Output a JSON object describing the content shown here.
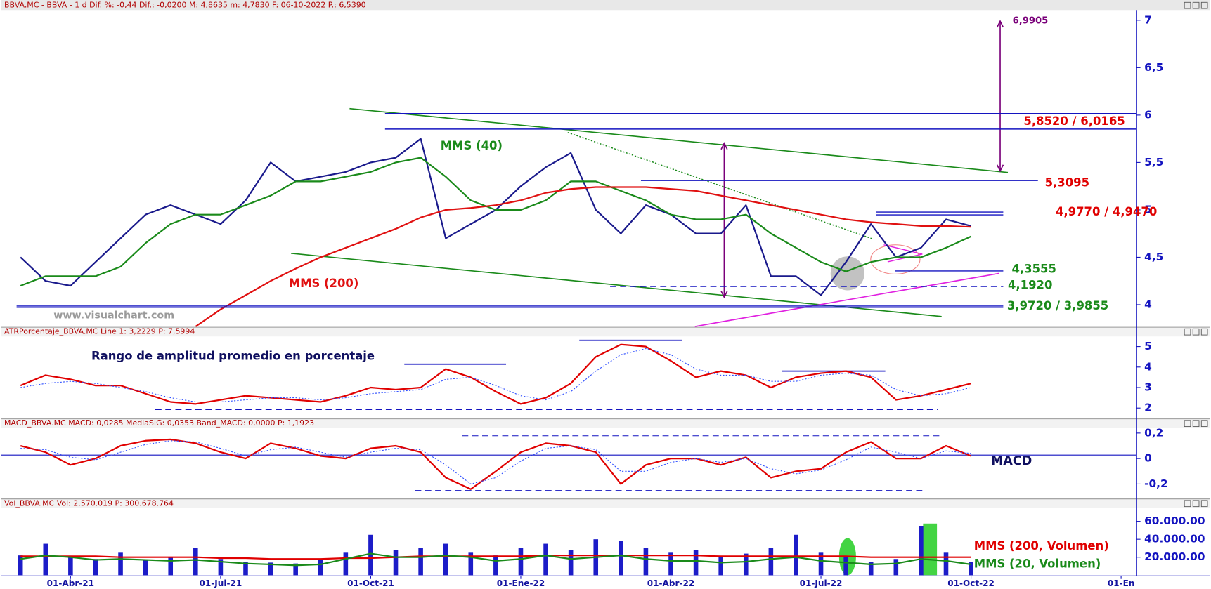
{
  "chart_data": [
    {
      "type": "line",
      "title": "BBVA.MC - BBVA -  1 d  Dif. %: -0,44  Dif.: -0,0200  M: 4,8635  m: 4,7830  F: 06-10-2022  P.: 6,5390",
      "categories": [
        null,
        null,
        "01-Abr-21",
        null,
        null,
        null,
        null,
        null,
        "01-Jul-21",
        null,
        null,
        null,
        null,
        null,
        "01-Oct-21",
        null,
        null,
        null,
        null,
        null,
        "01-Ene-22",
        null,
        null,
        null,
        null,
        null,
        "01-Abr-22",
        null,
        null,
        null,
        null,
        null,
        "01-Jul-22",
        null,
        null,
        null,
        null,
        null,
        "01-Oct-22",
        null,
        null,
        null,
        null,
        null,
        "01-En"
      ],
      "series": [
        {
          "color": "#1a1a8c",
          "values": [
            4.5,
            4.25,
            4.2,
            4.45,
            4.7,
            4.95,
            5.05,
            4.95,
            4.85,
            5.1,
            5.5,
            5.3,
            5.35,
            5.4,
            5.5,
            5.55,
            5.75,
            4.7,
            4.85,
            5.0,
            5.25,
            5.45,
            5.6,
            5.0,
            4.75,
            5.05,
            4.95,
            4.75,
            4.75,
            5.05,
            4.3,
            4.3,
            4.1,
            4.45,
            4.85,
            4.5,
            4.6,
            4.9,
            4.83,
            null,
            null,
            null,
            null,
            null,
            null
          ]
        },
        {
          "name": "MMS (40)",
          "color": "#1a8a1a",
          "values": [
            4.2,
            4.3,
            4.3,
            4.3,
            4.4,
            4.65,
            4.85,
            4.95,
            4.95,
            5.05,
            5.15,
            5.3,
            5.3,
            5.35,
            5.4,
            5.5,
            5.55,
            5.35,
            5.1,
            5.0,
            5.0,
            5.1,
            5.3,
            5.3,
            5.2,
            5.1,
            4.95,
            4.9,
            4.9,
            4.95,
            4.75,
            4.6,
            4.45,
            4.35,
            4.45,
            4.5,
            4.5,
            4.6,
            4.72,
            null,
            null,
            null,
            null,
            null,
            null
          ]
        },
        {
          "name": "MMS (200)",
          "color": "#e01010",
          "values": [
            null,
            null,
            null,
            null,
            null,
            null,
            null,
            3.77,
            3.95,
            4.1,
            4.25,
            4.38,
            4.5,
            4.6,
            4.7,
            4.8,
            4.92,
            5.0,
            5.02,
            5.05,
            5.1,
            5.18,
            5.22,
            5.24,
            5.24,
            5.24,
            5.22,
            5.2,
            5.15,
            5.1,
            5.05,
            5.0,
            4.95,
            4.9,
            4.87,
            4.85,
            4.83,
            4.83,
            4.82,
            null,
            null,
            null,
            null,
            null,
            null
          ]
        }
      ],
      "levels": [
        {
          "label": "6,9905",
          "values": [
            6.9905
          ],
          "color": "#7a007a"
        },
        {
          "label": "5,8520 / 6,0165",
          "values": [
            5.852,
            6.0165
          ],
          "color": "#e00000"
        },
        {
          "label": "5,3095",
          "values": [
            5.3095
          ],
          "color": "#e00000"
        },
        {
          "label": "4,9770 / 4,9470",
          "values": [
            4.977,
            4.947
          ],
          "color": "#e00000"
        },
        {
          "label": "4,3555",
          "values": [
            4.3555
          ],
          "color": "#1a8a1a"
        },
        {
          "label": "4,1920",
          "values": [
            4.192
          ],
          "color": "#1a8a1a"
        },
        {
          "label": "3,9720 / 3,9855",
          "values": [
            3.972,
            3.9855
          ],
          "color": "#1a8a1a"
        }
      ],
      "annotations": [
        "www.visualchart.com"
      ],
      "ylim": [
        3.77,
        7.1
      ],
      "yticks": [
        4,
        {
          "value": 4.5,
          "label": "4,5"
        },
        5,
        {
          "value": 5.5,
          "label": "5,5"
        },
        6,
        {
          "value": 6.5,
          "label": "6,5"
        },
        7
      ]
    },
    {
      "type": "line",
      "title": "ATRPorcentaje_BBVA.MC  Line 1: 3,2229  P: 7,5994",
      "subtitle": "Rango de amplitud promedio en porcentaje",
      "series": [
        {
          "color": "#e00000",
          "values": [
            3.1,
            3.6,
            3.4,
            3.1,
            3.1,
            2.7,
            2.3,
            2.2,
            2.4,
            2.6,
            2.5,
            2.4,
            2.3,
            2.6,
            3.0,
            2.9,
            3.0,
            3.9,
            3.5,
            2.8,
            2.2,
            2.5,
            3.2,
            4.5,
            5.1,
            5.0,
            4.3,
            3.5,
            3.8,
            3.6,
            3.0,
            3.5,
            3.7,
            3.8,
            3.5,
            2.4,
            2.6,
            2.9,
            3.2,
            null,
            null,
            null,
            null,
            null,
            null
          ]
        },
        {
          "color": "#3050ff",
          "style": "dotted",
          "values": [
            3.0,
            3.2,
            3.3,
            3.2,
            3.0,
            2.8,
            2.5,
            2.3,
            2.3,
            2.4,
            2.5,
            2.5,
            2.4,
            2.5,
            2.7,
            2.8,
            2.9,
            3.4,
            3.5,
            3.1,
            2.6,
            2.4,
            2.8,
            3.8,
            4.6,
            4.9,
            4.6,
            3.9,
            3.6,
            3.6,
            3.3,
            3.3,
            3.6,
            3.7,
            3.6,
            2.9,
            2.6,
            2.7,
            3.0,
            null,
            null,
            null,
            null,
            null,
            null
          ]
        }
      ],
      "ylim": [
        1.51,
        5.49
      ],
      "yticks": [
        2,
        3,
        4,
        5
      ]
    },
    {
      "type": "line",
      "title": "MACD_BBVA.MC  MACD: 0,0285  MediaSIG: 0,0353  Band_MACD: 0,0000  P: 1,1923",
      "annotations": [
        "MACD"
      ],
      "series": [
        {
          "color": "#e00000",
          "values": [
            0.1,
            0.05,
            -0.05,
            0.0,
            0.1,
            0.14,
            0.15,
            0.12,
            0.05,
            0.0,
            0.12,
            0.08,
            0.02,
            0.0,
            0.08,
            0.1,
            0.05,
            -0.15,
            -0.24,
            -0.1,
            0.05,
            0.12,
            0.1,
            0.05,
            -0.2,
            -0.05,
            0.0,
            0.0,
            -0.05,
            0.01,
            -0.15,
            -0.1,
            -0.08,
            0.05,
            0.13,
            0.0,
            0.0,
            0.1,
            0.02,
            null,
            null,
            null,
            null,
            null,
            null
          ]
        },
        {
          "color": "#3050ff",
          "style": "dotted",
          "values": [
            0.08,
            0.07,
            0.01,
            -0.01,
            0.05,
            0.11,
            0.14,
            0.13,
            0.08,
            0.02,
            0.07,
            0.09,
            0.05,
            0.01,
            0.05,
            0.08,
            0.07,
            -0.05,
            -0.2,
            -0.15,
            -0.02,
            0.08,
            0.1,
            0.07,
            -0.1,
            -0.1,
            -0.03,
            0.0,
            -0.03,
            0.0,
            -0.08,
            -0.12,
            -0.09,
            -0.01,
            0.09,
            0.05,
            0.0,
            0.06,
            0.04,
            null,
            null,
            null,
            null,
            null,
            null
          ]
        }
      ],
      "ylim": [
        -0.311,
        0.239
      ],
      "yticks": [
        {
          "value": 0.2,
          "label": "0,2"
        },
        0,
        {
          "value": -0.2,
          "label": "-0,2"
        }
      ]
    },
    {
      "type": "bar",
      "title": "Vol_BBVA.MC  Vol: 2.570.019  P: 300.678.764",
      "series": [
        {
          "color": "#1c1cc8",
          "values": [
            22000000.0,
            35000000.0,
            20000000.0,
            18000000.0,
            25000000.0,
            17000000.0,
            20000000.0,
            30000000.0,
            18000000.0,
            15000000.0,
            14000000.0,
            13000000.0,
            17000000.0,
            25000000.0,
            45000000.0,
            28000000.0,
            30000000.0,
            35000000.0,
            25000000.0,
            22000000.0,
            30000000.0,
            35000000.0,
            28000000.0,
            40000000.0,
            38000000.0,
            30000000.0,
            25000000.0,
            28000000.0,
            20000000.0,
            24000000.0,
            30000000.0,
            45000000.0,
            25000000.0,
            20000000.0,
            15000000.0,
            18000000.0,
            55000000.0,
            25000000.0,
            15000000.0,
            null,
            null,
            null,
            null,
            null,
            null
          ]
        },
        {
          "name": "MMS (200, Volumen)",
          "type": "line",
          "color": "#e00000",
          "values": [
            21000000.0,
            21000000.0,
            21000000.0,
            21000000.0,
            20000000.0,
            20000000.0,
            20000000.0,
            20000000.0,
            19000000.0,
            19000000.0,
            18000000.0,
            18000000.0,
            18000000.0,
            19000000.0,
            19000000.0,
            20000000.0,
            21000000.0,
            21000000.0,
            21000000.0,
            21000000.0,
            21000000.0,
            22000000.0,
            22000000.0,
            22000000.0,
            22000000.0,
            22000000.0,
            22000000.0,
            22000000.0,
            21000000.0,
            21000000.0,
            21000000.0,
            21000000.0,
            21000000.0,
            21000000.0,
            20000000.0,
            20000000.0,
            20000000.0,
            20000000.0,
            20000000.0,
            null,
            null,
            null,
            null,
            null,
            null
          ]
        },
        {
          "name": "MMS (20, Volumen)",
          "type": "line",
          "color": "#1a8a1a",
          "values": [
            18000000.0,
            22000000.0,
            20000000.0,
            17000000.0,
            18000000.0,
            17000000.0,
            16000000.0,
            17000000.0,
            15000000.0,
            13000000.0,
            12000000.0,
            11000000.0,
            12000000.0,
            18000000.0,
            24000000.0,
            20000000.0,
            20000000.0,
            22000000.0,
            20000000.0,
            16000000.0,
            18000000.0,
            22000000.0,
            18000000.0,
            20000000.0,
            22000000.0,
            18000000.0,
            16000000.0,
            16000000.0,
            14000000.0,
            15000000.0,
            18000000.0,
            20000000.0,
            16000000.0,
            14000000.0,
            12000000.0,
            13000000.0,
            18000000.0,
            16000000.0,
            12000000.0,
            null,
            null,
            null,
            null,
            null,
            null
          ]
        }
      ],
      "ylim": [
        0,
        74700000
      ],
      "yticks": [
        {
          "value": 20000000,
          "label": "20.000.00"
        },
        {
          "value": 40000000,
          "label": "40.000.00"
        },
        {
          "value": 60000000,
          "label": "60.000.00"
        }
      ]
    }
  ]
}
